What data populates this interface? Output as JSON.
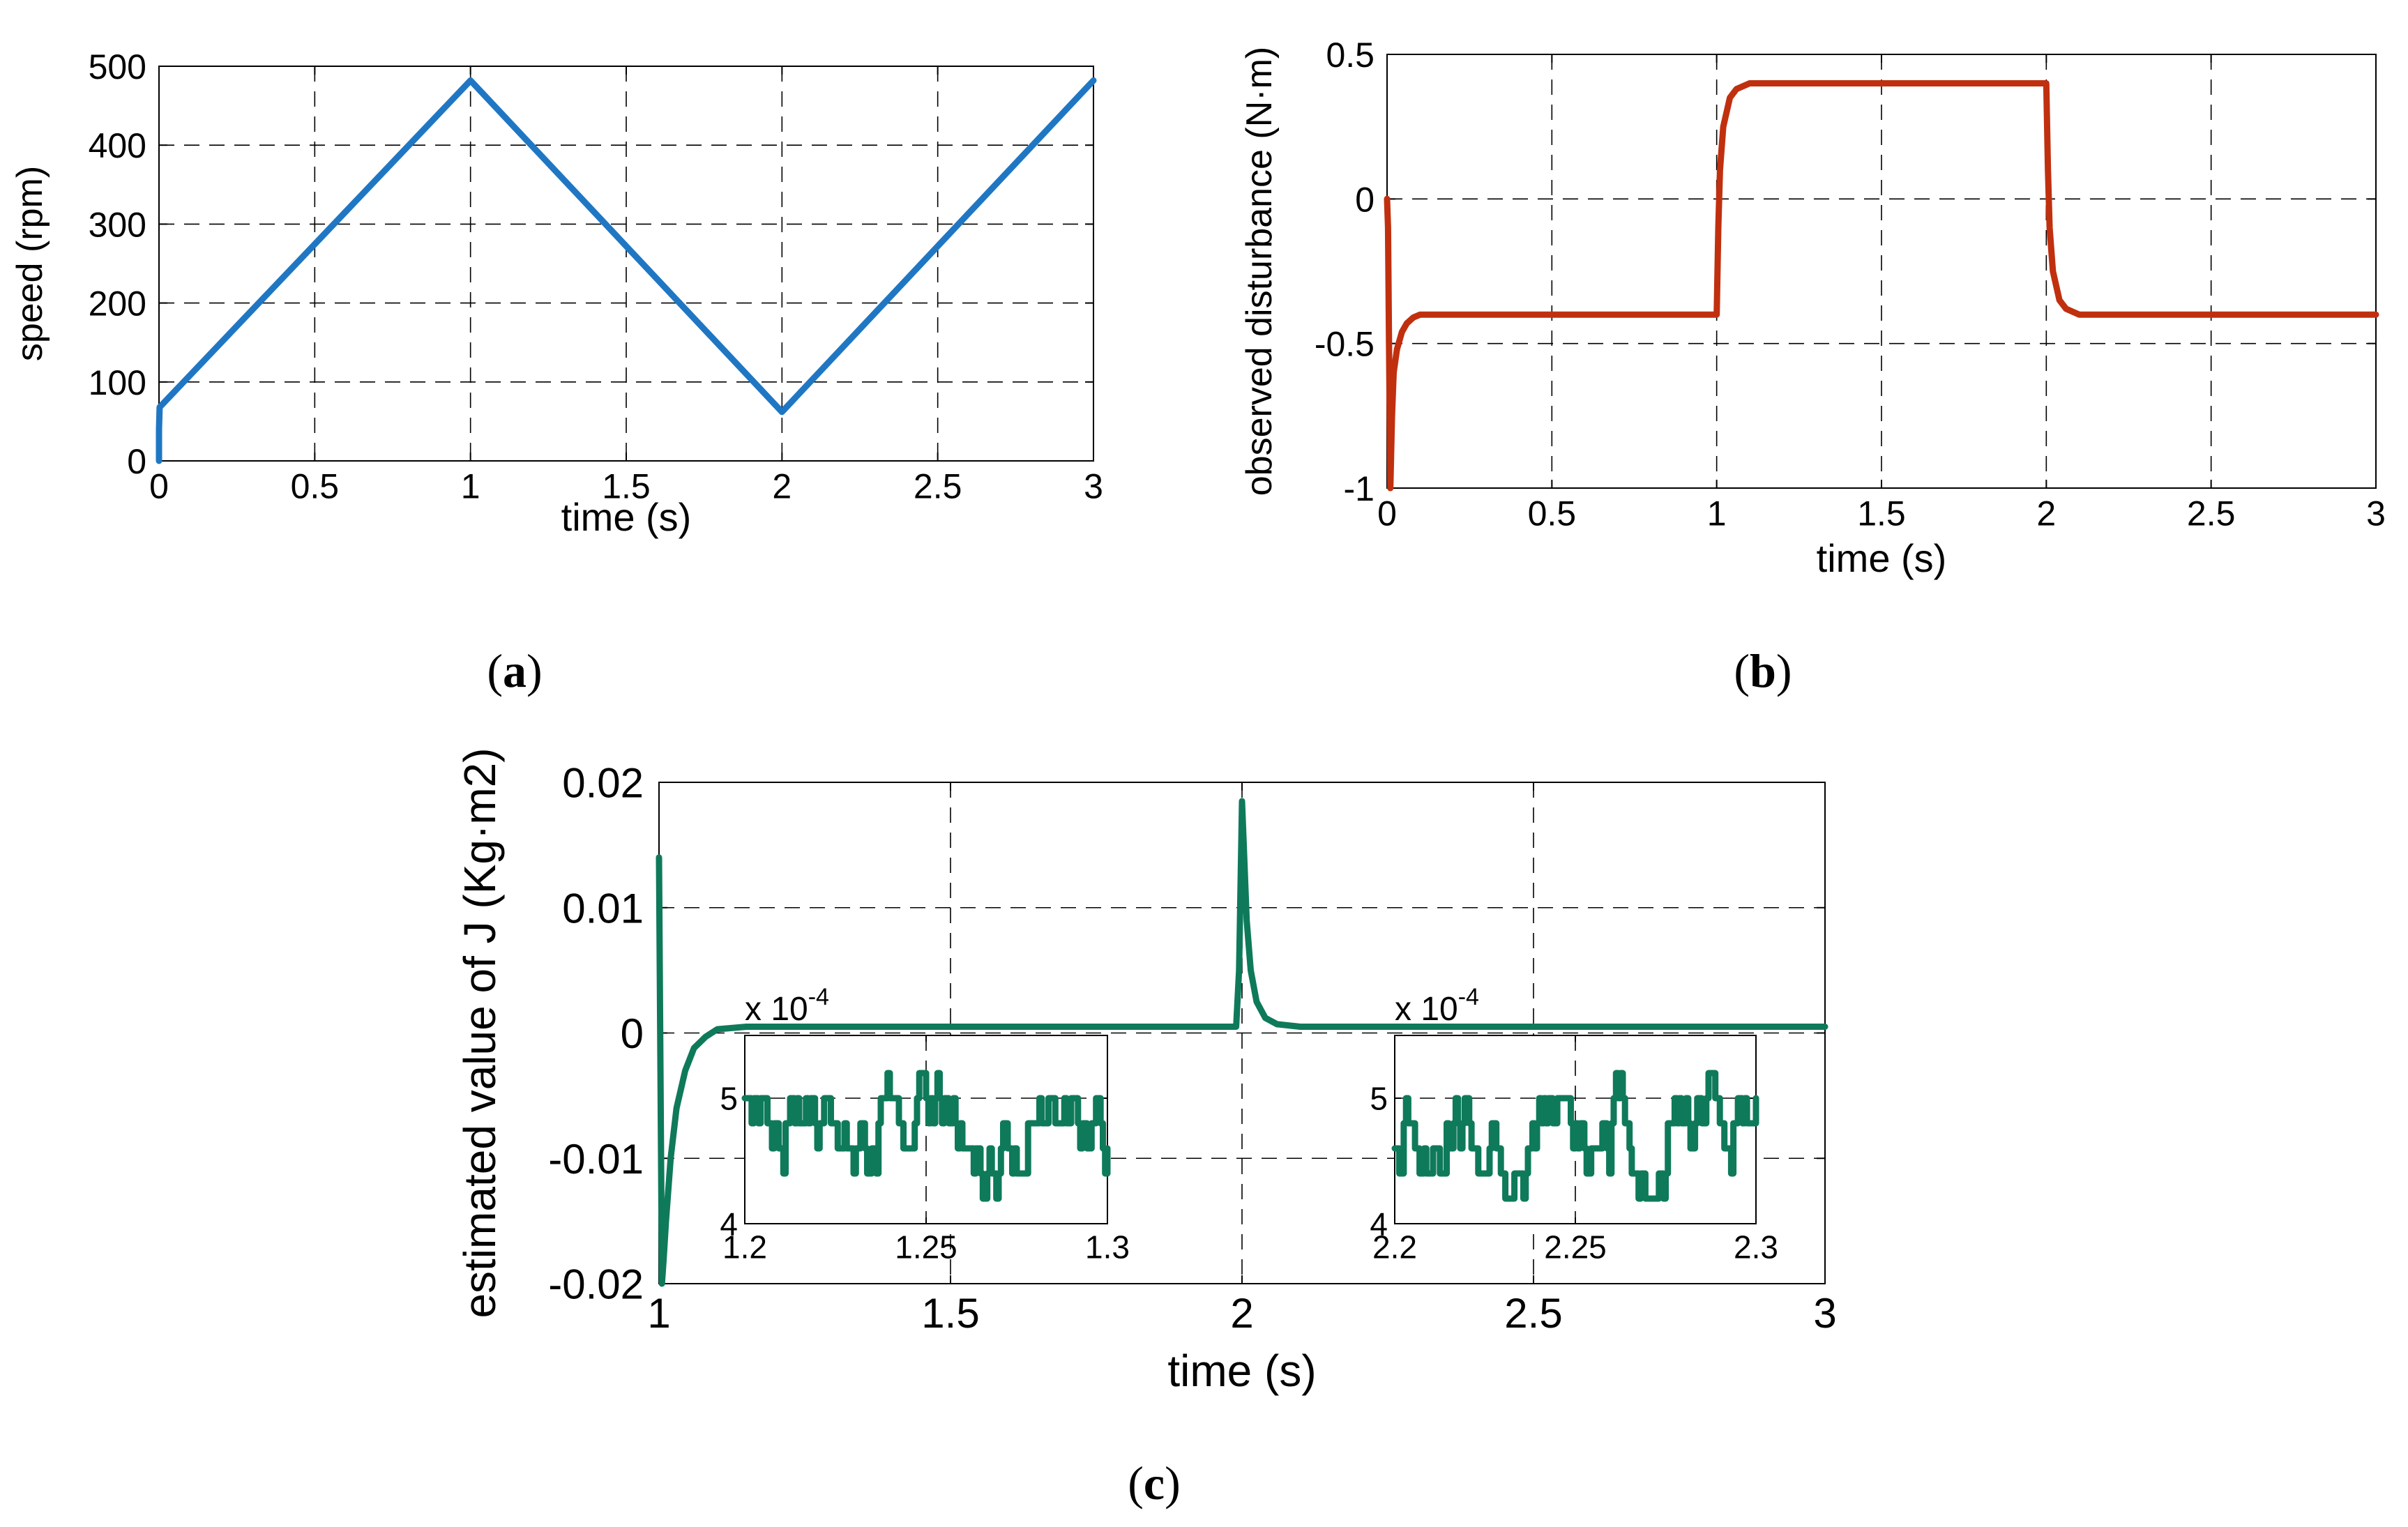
{
  "chart_data": [
    {
      "id": "a",
      "type": "line",
      "caption": "a",
      "xlabel": "time (s)",
      "ylabel": "speed (rpm)",
      "xlim": [
        0,
        3
      ],
      "ylim": [
        0,
        500
      ],
      "xticks": [
        0,
        0.5,
        1,
        1.5,
        2,
        2.5,
        3
      ],
      "yticks": [
        0,
        100,
        200,
        300,
        400,
        500
      ],
      "xtick_labels": [
        "0",
        "0.5",
        "1",
        "1.5",
        "2",
        "2.5",
        "3"
      ],
      "ytick_labels": [
        "0",
        "100",
        "200",
        "300",
        "400",
        "500"
      ],
      "grid": true,
      "color": "#1f77c4",
      "series": [
        {
          "name": "speed",
          "x": [
            0,
            0,
            0.002,
            1,
            2,
            3
          ],
          "y": [
            0,
            40,
            68,
            482,
            62,
            482
          ]
        }
      ]
    },
    {
      "id": "b",
      "type": "line",
      "caption": "b",
      "xlabel": "time (s)",
      "ylabel": "observed disturbance (N·m)",
      "xlim": [
        0,
        3
      ],
      "ylim": [
        -1,
        0.5
      ],
      "xticks": [
        0,
        0.5,
        1,
        1.5,
        2,
        2.5,
        3
      ],
      "yticks": [
        -1,
        -0.5,
        0,
        0.5
      ],
      "xtick_labels": [
        "0",
        "0.5",
        "1",
        "1.5",
        "2",
        "2.5",
        "3"
      ],
      "ytick_labels": [
        "-1",
        "-0.5",
        "0",
        "0.5"
      ],
      "grid": true,
      "color": "#c0300f",
      "series": [
        {
          "name": "observed disturbance",
          "x": [
            0,
            0.003,
            0.006,
            0.01,
            0.015,
            0.02,
            0.03,
            0.045,
            0.06,
            0.08,
            0.1,
            0.2,
            0.5,
            0.9,
            1.0,
            1.005,
            1.01,
            1.02,
            1.04,
            1.06,
            1.1,
            1.2,
            1.5,
            1.9,
            2.0,
            2.005,
            2.01,
            2.02,
            2.04,
            2.06,
            2.1,
            2.2,
            2.5,
            3.0
          ],
          "y": [
            0,
            -0.1,
            -0.5,
            -1.0,
            -0.75,
            -0.6,
            -0.52,
            -0.46,
            -0.43,
            -0.41,
            -0.4,
            -0.4,
            -0.4,
            -0.4,
            -0.4,
            -0.1,
            0.1,
            0.25,
            0.35,
            0.38,
            0.4,
            0.4,
            0.4,
            0.4,
            0.4,
            0.1,
            -0.1,
            -0.25,
            -0.35,
            -0.38,
            -0.4,
            -0.4,
            -0.4,
            -0.4
          ]
        }
      ]
    },
    {
      "id": "c",
      "type": "line",
      "caption": "c",
      "xlabel": "time (s)",
      "ylabel": "estimated value of J (Kg·m2)",
      "xlim": [
        1,
        3
      ],
      "ylim": [
        -0.02,
        0.02
      ],
      "xticks": [
        1,
        1.5,
        2,
        2.5,
        3
      ],
      "yticks": [
        -0.02,
        -0.01,
        0,
        0.01,
        0.02
      ],
      "xtick_labels": [
        "1",
        "1.5",
        "2",
        "2.5",
        "3"
      ],
      "ytick_labels": [
        "-0.02",
        "-0.01",
        "0",
        "0.01",
        "0.02"
      ],
      "grid": true,
      "color": "#0e7a5a",
      "series": [
        {
          "name": "estimated J",
          "x": [
            1,
            1.002,
            1.005,
            1.008,
            1.012,
            1.02,
            1.03,
            1.045,
            1.06,
            1.08,
            1.1,
            1.15,
            1.5,
            1.99,
            1.995,
            2.0,
            2.003,
            2.008,
            2.015,
            2.025,
            2.04,
            2.06,
            2.1,
            2.5,
            3.0
          ],
          "y": [
            0.014,
            0.0,
            -0.02,
            -0.018,
            -0.015,
            -0.01,
            -0.006,
            -0.003,
            -0.0012,
            -0.0003,
            0.0003,
            0.0005,
            0.0005,
            0.0005,
            0.005,
            0.0185,
            0.015,
            0.009,
            0.005,
            0.0025,
            0.0012,
            0.0007,
            0.0005,
            0.0005,
            0.0005
          ]
        }
      ],
      "insets": [
        {
          "id": "c-inset-1",
          "type": "line",
          "exponent_label": "x 10",
          "exponent": "-4",
          "xlim": [
            1.2,
            1.3
          ],
          "ylim": [
            4,
            5.5
          ],
          "xticks": [
            1.2,
            1.25,
            1.3
          ],
          "yticks": [
            4,
            5
          ],
          "xtick_labels": [
            "1.2",
            "1.25",
            "1.3"
          ],
          "ytick_labels": [
            "4",
            "5"
          ],
          "grid": true,
          "seed": 7,
          "noise_levels": [
            4.2,
            4.4,
            4.6,
            4.8,
            5.0,
            5.2
          ],
          "noise_mean": 4.75
        },
        {
          "id": "c-inset-2",
          "type": "line",
          "exponent_label": "x 10",
          "exponent": "-4",
          "xlim": [
            2.2,
            2.3
          ],
          "ylim": [
            4,
            5.5
          ],
          "xticks": [
            2.2,
            2.25,
            2.3
          ],
          "yticks": [
            4,
            5
          ],
          "xtick_labels": [
            "2.2",
            "2.25",
            "2.3"
          ],
          "ytick_labels": [
            "4",
            "5"
          ],
          "grid": true,
          "seed": 19,
          "noise_levels": [
            4.2,
            4.4,
            4.6,
            4.8,
            5.0,
            5.2
          ],
          "noise_mean": 4.75
        }
      ]
    }
  ]
}
